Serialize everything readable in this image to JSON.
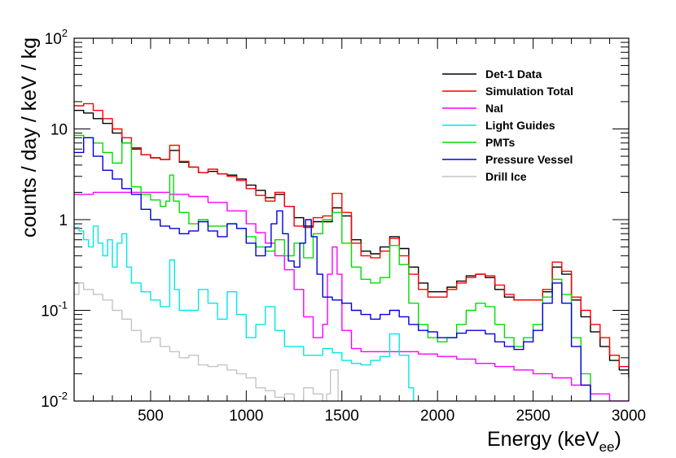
{
  "chart_data": {
    "type": "line",
    "title": "",
    "xlabel": "Energy (keV",
    "xlabel_sub": "ee",
    "xlabel_close": ")",
    "ylabel": "counts / day / keV / kg",
    "xlim": [
      100,
      3000
    ],
    "ylim": [
      0.01,
      100
    ],
    "yscale": "log",
    "legend_position": "top-right",
    "x_ticks": [
      500,
      1000,
      1500,
      2000,
      2500,
      3000
    ],
    "y_ticks": [
      {
        "value": 0.01,
        "base": "10",
        "exp": "-2"
      },
      {
        "value": 0.1,
        "base": "10",
        "exp": "-1"
      },
      {
        "value": 1,
        "base": "1",
        "exp": ""
      },
      {
        "value": 10,
        "base": "10",
        "exp": ""
      },
      {
        "value": 100,
        "base": "10",
        "exp": "2"
      }
    ],
    "series": [
      {
        "name": "Det-1 Data",
        "color": "#000000",
        "x": [
          100,
          150,
          200,
          250,
          300,
          350,
          400,
          450,
          500,
          550,
          600,
          650,
          700,
          750,
          800,
          850,
          900,
          950,
          1000,
          1050,
          1100,
          1150,
          1200,
          1250,
          1300,
          1350,
          1400,
          1450,
          1500,
          1550,
          1600,
          1650,
          1700,
          1750,
          1800,
          1850,
          1900,
          1950,
          2000,
          2050,
          2100,
          2150,
          2200,
          2250,
          2300,
          2350,
          2400,
          2450,
          2500,
          2550,
          2600,
          2650,
          2700,
          2750,
          2800,
          2850,
          2900,
          2950,
          3000
        ],
        "y": [
          16,
          15,
          13,
          11.5,
          9,
          7,
          6,
          5.2,
          4.8,
          4.6,
          5.8,
          4.3,
          3.8,
          3.3,
          3.4,
          3.2,
          3.1,
          2.8,
          2.4,
          2.1,
          1.75,
          1.9,
          1.4,
          1.05,
          0.85,
          0.95,
          0.95,
          1.35,
          1.1,
          0.6,
          0.45,
          0.42,
          0.5,
          0.65,
          0.48,
          0.3,
          0.2,
          0.16,
          0.16,
          0.18,
          0.21,
          0.24,
          0.25,
          0.23,
          0.17,
          0.14,
          0.13,
          0.13,
          0.13,
          0.16,
          0.3,
          0.25,
          0.13,
          0.085,
          0.058,
          0.04,
          0.028,
          0.022,
          0.018
        ]
      },
      {
        "name": "Simulation Total",
        "color": "#ff0000",
        "x": [
          100,
          150,
          200,
          250,
          300,
          350,
          400,
          450,
          500,
          550,
          600,
          650,
          700,
          750,
          800,
          850,
          900,
          950,
          1000,
          1050,
          1100,
          1150,
          1200,
          1250,
          1300,
          1350,
          1400,
          1450,
          1500,
          1550,
          1600,
          1650,
          1700,
          1750,
          1800,
          1850,
          1900,
          1950,
          2000,
          2050,
          2100,
          2150,
          2200,
          2250,
          2300,
          2350,
          2400,
          2450,
          2500,
          2550,
          2600,
          2650,
          2700,
          2750,
          2800,
          2850,
          2900,
          2950,
          3000
        ],
        "y": [
          18,
          19,
          16,
          13,
          10,
          8,
          6.2,
          5.2,
          4.8,
          4.6,
          6.6,
          4.4,
          3.8,
          3.3,
          3.6,
          3.2,
          3.0,
          2.7,
          2.2,
          1.85,
          1.6,
          2.0,
          1.4,
          0.85,
          0.82,
          1.05,
          1.1,
          1.95,
          1.2,
          0.55,
          0.4,
          0.38,
          0.45,
          0.62,
          0.4,
          0.25,
          0.17,
          0.14,
          0.14,
          0.17,
          0.2,
          0.23,
          0.25,
          0.24,
          0.19,
          0.15,
          0.13,
          0.13,
          0.13,
          0.17,
          0.34,
          0.27,
          0.14,
          0.1,
          0.07,
          0.05,
          0.032,
          0.024,
          0.02
        ]
      },
      {
        "name": "NaI",
        "color": "#ff00ff",
        "x": [
          100,
          200,
          300,
          400,
          500,
          600,
          700,
          800,
          900,
          1000,
          1050,
          1100,
          1150,
          1200,
          1250,
          1300,
          1350,
          1400,
          1425,
          1450,
          1475,
          1500,
          1550,
          1600,
          1700,
          1800,
          1900,
          2000,
          2100,
          2200,
          2300,
          2400,
          2500,
          2600,
          2700,
          2800,
          2900,
          3000
        ],
        "y": [
          1.9,
          2.0,
          2.0,
          2.0,
          2.0,
          1.9,
          1.8,
          1.55,
          1.25,
          0.9,
          0.72,
          0.55,
          0.4,
          0.28,
          0.17,
          0.085,
          0.05,
          0.07,
          0.25,
          0.5,
          0.25,
          0.06,
          0.038,
          0.035,
          0.035,
          0.035,
          0.033,
          0.031,
          0.029,
          0.026,
          0.024,
          0.022,
          0.02,
          0.018,
          0.015,
          0.012,
          0.01,
          0.009
        ]
      },
      {
        "name": "Light Guides",
        "color": "#00e8e8",
        "x": [
          100,
          125,
          150,
          175,
          200,
          225,
          250,
          275,
          300,
          325,
          350,
          375,
          400,
          450,
          500,
          550,
          600,
          625,
          650,
          700,
          750,
          800,
          850,
          900,
          950,
          1000,
          1050,
          1100,
          1150,
          1200,
          1250,
          1300,
          1350,
          1400,
          1450,
          1500,
          1550,
          1600,
          1650,
          1700,
          1750,
          1800,
          1850,
          1875
        ],
        "y": [
          0.82,
          0.75,
          0.6,
          0.5,
          0.85,
          0.55,
          0.4,
          0.6,
          0.3,
          0.55,
          0.7,
          0.3,
          0.2,
          0.16,
          0.13,
          0.11,
          0.36,
          0.17,
          0.1,
          0.1,
          0.17,
          0.12,
          0.08,
          0.16,
          0.09,
          0.05,
          0.07,
          0.11,
          0.06,
          0.04,
          0.04,
          0.032,
          0.032,
          0.038,
          0.034,
          0.028,
          0.026,
          0.025,
          0.028,
          0.031,
          0.055,
          0.032,
          0.014,
          0.01
        ]
      },
      {
        "name": "PMTs",
        "color": "#00dd00",
        "x": [
          100,
          150,
          200,
          250,
          300,
          350,
          400,
          450,
          500,
          550,
          580,
          600,
          620,
          650,
          700,
          750,
          800,
          850,
          900,
          950,
          1000,
          1050,
          1100,
          1150,
          1200,
          1250,
          1300,
          1350,
          1400,
          1450,
          1500,
          1550,
          1600,
          1650,
          1700,
          1750,
          1800,
          1850,
          1900,
          1950,
          2000,
          2050,
          2100,
          2150,
          2200,
          2250,
          2300,
          2350,
          2400,
          2450,
          2500,
          2550,
          2600,
          2650,
          2700,
          2750,
          2800
        ],
        "y": [
          8.5,
          8,
          7,
          5.5,
          4.2,
          7,
          2.3,
          1.9,
          1.65,
          1.4,
          1.6,
          3.1,
          1.6,
          1.2,
          0.9,
          1.0,
          0.85,
          0.85,
          0.9,
          0.8,
          0.65,
          0.5,
          0.45,
          0.6,
          0.4,
          0.55,
          0.38,
          0.7,
          1.0,
          1.2,
          0.55,
          0.3,
          0.22,
          0.2,
          0.23,
          0.52,
          0.32,
          0.12,
          0.07,
          0.05,
          0.045,
          0.05,
          0.07,
          0.1,
          0.12,
          0.11,
          0.07,
          0.05,
          0.04,
          0.05,
          0.07,
          0.14,
          0.22,
          0.15,
          0.05,
          0.02,
          0.01
        ]
      },
      {
        "name": "Pressure Vessel",
        "color": "#0000dd",
        "x": [
          100,
          150,
          200,
          250,
          300,
          350,
          400,
          450,
          500,
          550,
          600,
          650,
          700,
          750,
          800,
          850,
          900,
          950,
          1000,
          1050,
          1100,
          1130,
          1160,
          1190,
          1220,
          1250,
          1280,
          1310,
          1340,
          1370,
          1400,
          1450,
          1500,
          1550,
          1600,
          1650,
          1700,
          1750,
          1800,
          1850,
          1900,
          1950,
          2000,
          2050,
          2100,
          2150,
          2200,
          2250,
          2300,
          2350,
          2400,
          2450,
          2500,
          2550,
          2600,
          2650,
          2700,
          2750,
          2800
        ],
        "y": [
          5.5,
          8,
          5,
          3.5,
          2.8,
          2.2,
          1.9,
          1.3,
          1,
          0.85,
          0.8,
          0.7,
          0.75,
          0.95,
          0.75,
          0.65,
          0.9,
          0.8,
          0.55,
          0.4,
          0.5,
          0.9,
          1.25,
          0.7,
          0.35,
          0.3,
          0.55,
          1.0,
          0.65,
          0.25,
          0.14,
          0.13,
          0.12,
          0.1,
          0.09,
          0.08,
          0.09,
          0.1,
          0.085,
          0.07,
          0.06,
          0.058,
          0.05,
          0.05,
          0.056,
          0.06,
          0.06,
          0.055,
          0.045,
          0.04,
          0.037,
          0.045,
          0.06,
          0.12,
          0.2,
          0.12,
          0.04,
          0.015,
          0.01
        ]
      },
      {
        "name": "Drill Ice",
        "color": "#c4c4c4",
        "x": [
          100,
          125,
          150,
          200,
          250,
          300,
          350,
          400,
          450,
          500,
          550,
          600,
          650,
          700,
          750,
          800,
          850,
          900,
          950,
          1000,
          1050,
          1100,
          1150,
          1200,
          1250,
          1300,
          1350,
          1400,
          1420,
          1440,
          1460,
          1480
        ],
        "y": [
          0.15,
          0.2,
          0.17,
          0.15,
          0.13,
          0.1,
          0.08,
          0.06,
          0.045,
          0.05,
          0.04,
          0.035,
          0.03,
          0.032,
          0.025,
          0.024,
          0.025,
          0.022,
          0.02,
          0.018,
          0.014,
          0.013,
          0.011,
          0.012,
          0.01,
          0.014,
          0.012,
          0.01,
          0.012,
          0.022,
          0.022,
          0.01
        ]
      }
    ]
  }
}
